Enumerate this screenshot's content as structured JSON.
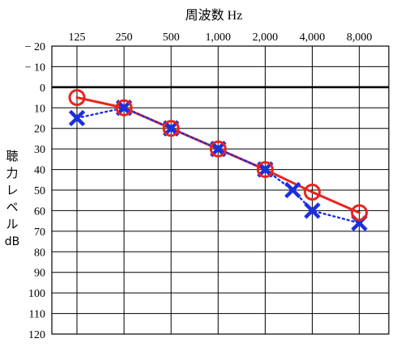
{
  "chart_data": {
    "type": "line",
    "title": "周波数 Hz",
    "xlabel": "周波数 Hz",
    "ylabel": [
      "聴",
      "力",
      "レ",
      "ベ",
      "ル",
      "dB"
    ],
    "x_tick_labels": [
      "125",
      "250",
      "500",
      "1,000",
      "2,000",
      "4,000",
      "8,000"
    ],
    "y_tick_labels": [
      "− 20",
      "− 10",
      "0",
      "10",
      "20",
      "30",
      "40",
      "50",
      "60",
      "70",
      "80",
      "90",
      "100",
      "110",
      "120"
    ],
    "y_tick_values": [
      -20,
      -10,
      0,
      10,
      20,
      30,
      40,
      50,
      60,
      70,
      80,
      90,
      100,
      110,
      120
    ],
    "ylim": [
      -20,
      120
    ],
    "y_inverted": true,
    "x_scale": "log2",
    "grid": true,
    "series": [
      {
        "marker": "circle",
        "line_style": "solid",
        "color": "#e8231e",
        "points": [
          {
            "x": 125,
            "y": 5
          },
          {
            "x": 250,
            "y": 10
          },
          {
            "x": 500,
            "y": 20
          },
          {
            "x": 1000,
            "y": 30
          },
          {
            "x": 2000,
            "y": 40
          },
          {
            "x": 4000,
            "y": 51
          },
          {
            "x": 8000,
            "y": 61
          }
        ]
      },
      {
        "marker": "cross",
        "line_style": "dotted",
        "color": "#1b2fe0",
        "points": [
          {
            "x": 125,
            "y": 15
          },
          {
            "x": 250,
            "y": 10
          },
          {
            "x": 500,
            "y": 20
          },
          {
            "x": 1000,
            "y": 30
          },
          {
            "x": 2000,
            "y": 40
          },
          {
            "x": 3000,
            "y": 50
          },
          {
            "x": 4000,
            "y": 60
          },
          {
            "x": 8000,
            "y": 66
          }
        ]
      }
    ]
  }
}
